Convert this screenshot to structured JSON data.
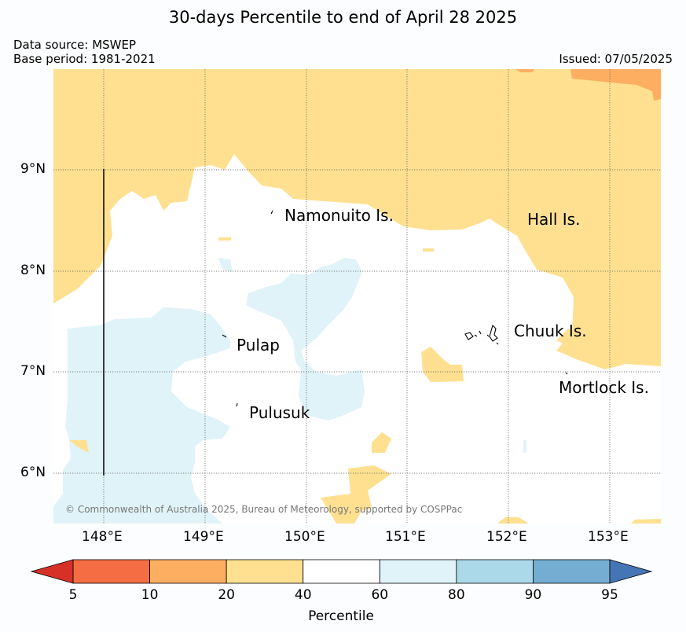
{
  "header": {
    "title": "30-days Percentile to end of April 28 2025",
    "data_source": "Data source: MSWEP",
    "base_period": "Base period: 1981-2021",
    "issued": "Issued: 07/05/2025"
  },
  "map": {
    "lat_labels": [
      "9°N",
      "8°N",
      "7°N",
      "6°N"
    ],
    "lon_labels": [
      "148°E",
      "149°E",
      "150°E",
      "151°E",
      "152°E",
      "153°E"
    ],
    "places": [
      "Namonuito Is.",
      "Hall Is.",
      "Pulap",
      "Chuuk Is.",
      "Pulusuk",
      "Mortlock Is."
    ],
    "copyright": "© Commonwealth of Australia 2025, Bureau of Meteorology, supported by COSPPac",
    "colors": {
      "p5_10": "#f46d43",
      "p10_20": "#fdae61",
      "p20_40": "#fee090",
      "p40_60": "#ffffff",
      "p60_80": "#e0f3f8",
      "p80_90": "#abd9e9",
      "p90_95": "#74add1",
      "above95": "#4575b4",
      "below5": "#d73027"
    }
  },
  "colorbar": {
    "ticks": [
      "5",
      "10",
      "20",
      "40",
      "60",
      "80",
      "90",
      "95"
    ],
    "label": "Percentile",
    "colors": [
      "#f46d43",
      "#fdae61",
      "#fee090",
      "#ffffff",
      "#e0f3f8",
      "#abd9e9",
      "#74add1"
    ],
    "below_color": "#d73027",
    "above_color": "#4575b4"
  }
}
